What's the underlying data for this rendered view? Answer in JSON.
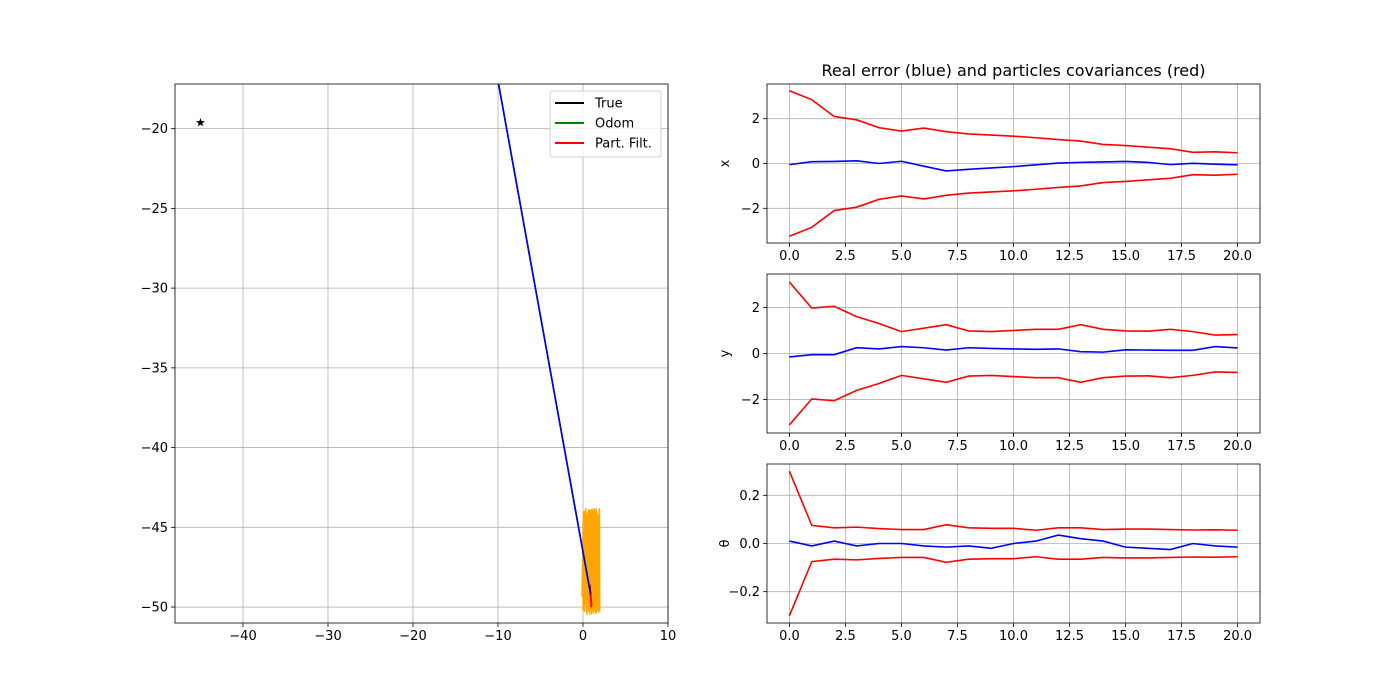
{
  "colors": {
    "true": "#000000",
    "odom": "#008000",
    "pf": "#ff0000",
    "particles": "#ffa500",
    "error": "#0000ff",
    "cov": "#ff0000",
    "grid": "#b0b0b0"
  },
  "chart_data": [
    {
      "id": "trajectory",
      "type": "line",
      "title": "",
      "xlabel": "",
      "ylabel": "",
      "xlim": [
        -48,
        10
      ],
      "ylim": [
        -51,
        -17.2
      ],
      "xticks": [
        -40,
        -30,
        -20,
        -10,
        0,
        10
      ],
      "yticks": [
        -50,
        -45,
        -40,
        -35,
        -30,
        -25,
        -20
      ],
      "grid": true,
      "legend": {
        "placement": "top-right",
        "entries": [
          "True",
          "Odom",
          "Part. Filt."
        ]
      },
      "series": [
        {
          "name": "True",
          "color": "#000000",
          "x": [
            -10.0,
            0.9
          ],
          "y": [
            -17.0,
            -49.2
          ]
        },
        {
          "name": "Odom",
          "color": "#008000",
          "x": [
            -10.0,
            0.9
          ],
          "y": [
            -17.0,
            -49.2
          ]
        },
        {
          "name": "Part. Filt.",
          "color": "#ff0000",
          "x": [
            0.8,
            0.9,
            1.0,
            0.9
          ],
          "y": [
            -48.6,
            -49.3,
            -49.9,
            -50.0
          ]
        }
      ],
      "trajectory_line": {
        "color": "#0000ff",
        "x": [
          -10.0,
          0.9
        ],
        "y": [
          -17.0,
          -49.2
        ]
      },
      "landmarks": [
        {
          "x": -45.0,
          "y": -19.6
        }
      ],
      "particles": {
        "color": "#ffa500",
        "x_range": [
          0.0,
          2.0
        ],
        "y_range": [
          -50.5,
          -43.8
        ]
      }
    },
    {
      "id": "error-x",
      "type": "line",
      "title": "Real error (blue) and particles covariances (red)",
      "ylabel": "x",
      "xlim": [
        -1.0,
        21.0
      ],
      "ylim": [
        -3.55,
        3.55
      ],
      "xticks": [
        "0.0",
        "2.5",
        "5.0",
        "7.5",
        "10.0",
        "12.5",
        "15.0",
        "17.5",
        "20.0"
      ],
      "yticks": [
        "−2",
        "0",
        "2"
      ],
      "grid": true,
      "x": [
        0,
        1,
        2,
        3,
        4,
        5,
        6,
        7,
        8,
        9,
        10,
        11,
        12,
        13,
        14,
        15,
        16,
        17,
        18,
        19,
        20
      ],
      "series": [
        {
          "name": "error",
          "color": "#0000ff",
          "values": [
            -0.05,
            0.08,
            0.09,
            0.12,
            0.0,
            0.1,
            -0.12,
            -0.33,
            -0.26,
            -0.2,
            -0.14,
            -0.06,
            0.02,
            0.05,
            0.07,
            0.09,
            0.05,
            -0.05,
            0.01,
            -0.03,
            -0.06
          ]
        },
        {
          "name": "cov_upper",
          "color": "#ff0000",
          "values": [
            3.25,
            2.85,
            2.1,
            1.95,
            1.6,
            1.45,
            1.58,
            1.42,
            1.32,
            1.27,
            1.22,
            1.15,
            1.07,
            1.0,
            0.85,
            0.8,
            0.73,
            0.66,
            0.5,
            0.52,
            0.48
          ]
        },
        {
          "name": "cov_lower",
          "color": "#ff0000",
          "values": [
            -3.25,
            -2.85,
            -2.1,
            -1.95,
            -1.6,
            -1.45,
            -1.58,
            -1.42,
            -1.32,
            -1.27,
            -1.22,
            -1.15,
            -1.07,
            -1.0,
            -0.85,
            -0.8,
            -0.73,
            -0.66,
            -0.5,
            -0.52,
            -0.48
          ]
        }
      ]
    },
    {
      "id": "error-y",
      "type": "line",
      "title": "",
      "ylabel": "y",
      "xlim": [
        -1.0,
        21.0
      ],
      "ylim": [
        -3.45,
        3.45
      ],
      "xticks": [
        "0.0",
        "2.5",
        "5.0",
        "7.5",
        "10.0",
        "12.5",
        "15.0",
        "17.5",
        "20.0"
      ],
      "yticks": [
        "−2",
        "0",
        "2"
      ],
      "grid": true,
      "x": [
        0,
        1,
        2,
        3,
        4,
        5,
        6,
        7,
        8,
        9,
        10,
        11,
        12,
        13,
        14,
        15,
        16,
        17,
        18,
        19,
        20
      ],
      "series": [
        {
          "name": "error",
          "color": "#0000ff",
          "values": [
            -0.15,
            -0.05,
            -0.05,
            0.25,
            0.2,
            0.3,
            0.25,
            0.15,
            0.25,
            0.22,
            0.2,
            0.18,
            0.2,
            0.08,
            0.06,
            0.16,
            0.15,
            0.14,
            0.14,
            0.3,
            0.24
          ]
        },
        {
          "name": "cov_upper",
          "color": "#ff0000",
          "values": [
            3.1,
            1.97,
            2.05,
            1.6,
            1.3,
            0.95,
            1.1,
            1.25,
            0.98,
            0.95,
            1.0,
            1.05,
            1.05,
            1.25,
            1.05,
            0.98,
            0.97,
            1.05,
            0.95,
            0.8,
            0.82
          ]
        },
        {
          "name": "cov_lower",
          "color": "#ff0000",
          "values": [
            -3.1,
            -1.97,
            -2.05,
            -1.6,
            -1.3,
            -0.95,
            -1.1,
            -1.25,
            -0.98,
            -0.95,
            -1.0,
            -1.05,
            -1.05,
            -1.25,
            -1.05,
            -0.98,
            -0.97,
            -1.05,
            -0.95,
            -0.8,
            -0.82
          ]
        }
      ]
    },
    {
      "id": "error-theta",
      "type": "line",
      "title": "",
      "ylabel": "θ",
      "xlim": [
        -1.0,
        21.0
      ],
      "ylim": [
        -0.33,
        0.33
      ],
      "xticks": [
        "0.0",
        "2.5",
        "5.0",
        "7.5",
        "10.0",
        "12.5",
        "15.0",
        "17.5",
        "20.0"
      ],
      "yticks": [
        "−0.2",
        "0.0",
        "0.2"
      ],
      "grid": true,
      "x": [
        0,
        1,
        2,
        3,
        4,
        5,
        6,
        7,
        8,
        9,
        10,
        11,
        12,
        13,
        14,
        15,
        16,
        17,
        18,
        19,
        20
      ],
      "series": [
        {
          "name": "error",
          "color": "#0000ff",
          "values": [
            0.01,
            -0.01,
            0.01,
            -0.01,
            0.0,
            0.0,
            -0.01,
            -0.015,
            -0.01,
            -0.02,
            0.0,
            0.01,
            0.035,
            0.02,
            0.01,
            -0.015,
            -0.02,
            -0.025,
            0.0,
            -0.01,
            -0.015
          ]
        },
        {
          "name": "cov_upper",
          "color": "#ff0000",
          "values": [
            0.3,
            0.075,
            0.065,
            0.068,
            0.062,
            0.058,
            0.058,
            0.078,
            0.065,
            0.063,
            0.063,
            0.055,
            0.065,
            0.065,
            0.058,
            0.06,
            0.06,
            0.058,
            0.056,
            0.057,
            0.055
          ]
        },
        {
          "name": "cov_lower",
          "color": "#ff0000",
          "values": [
            -0.3,
            -0.075,
            -0.065,
            -0.068,
            -0.062,
            -0.058,
            -0.058,
            -0.078,
            -0.065,
            -0.063,
            -0.063,
            -0.055,
            -0.065,
            -0.065,
            -0.058,
            -0.06,
            -0.06,
            -0.058,
            -0.056,
            -0.057,
            -0.055
          ]
        }
      ]
    }
  ]
}
